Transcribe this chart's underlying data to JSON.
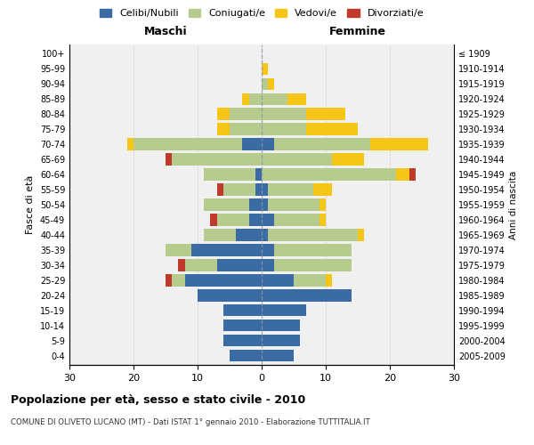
{
  "age_groups": [
    "0-4",
    "5-9",
    "10-14",
    "15-19",
    "20-24",
    "25-29",
    "30-34",
    "35-39",
    "40-44",
    "45-49",
    "50-54",
    "55-59",
    "60-64",
    "65-69",
    "70-74",
    "75-79",
    "80-84",
    "85-89",
    "90-94",
    "95-99",
    "100+"
  ],
  "birth_years": [
    "2005-2009",
    "2000-2004",
    "1995-1999",
    "1990-1994",
    "1985-1989",
    "1980-1984",
    "1975-1979",
    "1970-1974",
    "1965-1969",
    "1960-1964",
    "1955-1959",
    "1950-1954",
    "1945-1949",
    "1940-1944",
    "1935-1939",
    "1930-1934",
    "1925-1929",
    "1920-1924",
    "1915-1919",
    "1910-1914",
    "≤ 1909"
  ],
  "maschi": {
    "celibi": [
      5,
      6,
      6,
      6,
      10,
      12,
      7,
      11,
      4,
      2,
      2,
      1,
      1,
      0,
      3,
      0,
      0,
      0,
      0,
      0,
      0
    ],
    "coniugati": [
      0,
      0,
      0,
      0,
      0,
      2,
      5,
      4,
      5,
      5,
      7,
      5,
      8,
      14,
      17,
      5,
      5,
      2,
      0,
      0,
      0
    ],
    "vedovi": [
      0,
      0,
      0,
      0,
      0,
      0,
      0,
      0,
      0,
      0,
      0,
      0,
      0,
      0,
      1,
      2,
      2,
      1,
      0,
      0,
      0
    ],
    "divorziati": [
      0,
      0,
      0,
      0,
      0,
      1,
      1,
      0,
      0,
      1,
      0,
      1,
      0,
      1,
      0,
      0,
      0,
      0,
      0,
      0,
      0
    ]
  },
  "femmine": {
    "nubili": [
      5,
      6,
      6,
      7,
      14,
      5,
      2,
      2,
      1,
      2,
      1,
      1,
      0,
      0,
      2,
      0,
      0,
      0,
      0,
      0,
      0
    ],
    "coniugate": [
      0,
      0,
      0,
      0,
      0,
      5,
      12,
      12,
      14,
      7,
      8,
      7,
      21,
      11,
      15,
      7,
      7,
      4,
      1,
      0,
      0
    ],
    "vedove": [
      0,
      0,
      0,
      0,
      0,
      1,
      0,
      0,
      1,
      1,
      1,
      3,
      2,
      5,
      9,
      8,
      6,
      3,
      1,
      1,
      0
    ],
    "divorziate": [
      0,
      0,
      0,
      0,
      0,
      0,
      0,
      0,
      0,
      0,
      0,
      0,
      1,
      0,
      0,
      0,
      0,
      0,
      0,
      0,
      0
    ]
  },
  "colors": {
    "celibi_nubili": "#3b6ba5",
    "coniugati": "#b5cc8e",
    "vedovi": "#f5c518",
    "divorziati": "#c0392b"
  },
  "xlim": 30,
  "title": "Popolazione per età, sesso e stato civile - 2010",
  "subtitle": "COMUNE DI OLIVETO LUCANO (MT) - Dati ISTAT 1° gennaio 2010 - Elaborazione TUTTITALIA.IT",
  "ylabel": "Fasce di età",
  "ylabel_right": "Anni di nascita",
  "xlabel_left": "Maschi",
  "xlabel_right": "Femmine"
}
